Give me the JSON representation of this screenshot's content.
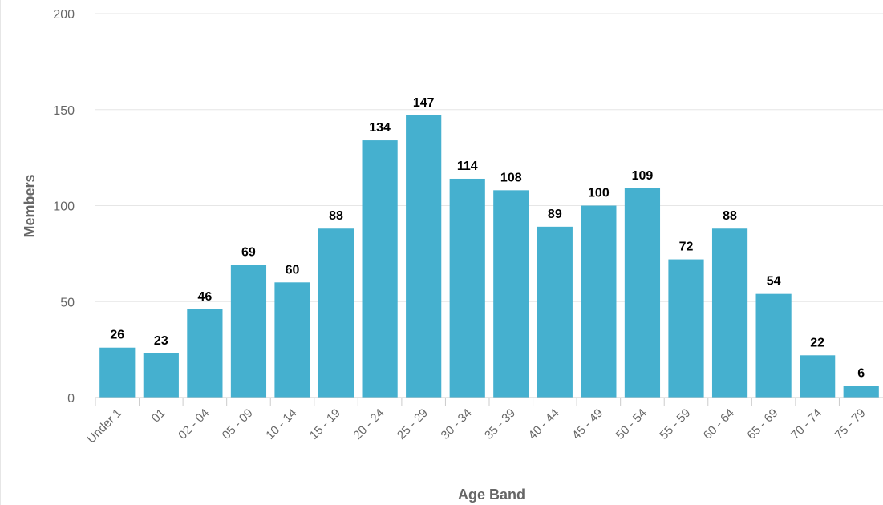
{
  "chart_data": {
    "type": "bar",
    "categories": [
      "Under 1",
      "01",
      "02 - 04",
      "05 - 09",
      "10 - 14",
      "15 - 19",
      "20 - 24",
      "25 - 29",
      "30 - 34",
      "35 - 39",
      "40 - 44",
      "45 - 49",
      "50 - 54",
      "55 - 59",
      "60 - 64",
      "65 - 69",
      "70 - 74",
      "75 - 79"
    ],
    "values": [
      26,
      23,
      46,
      69,
      60,
      88,
      134,
      147,
      114,
      108,
      89,
      100,
      109,
      72,
      88,
      54,
      22,
      6
    ],
    "title": "",
    "xlabel": "Age Band",
    "ylabel": "Members",
    "ylim": [
      0,
      200
    ],
    "yticks": [
      0,
      50,
      100,
      150,
      200
    ],
    "grid": true,
    "data_labels": true,
    "bar_color": "#45b0cf"
  }
}
